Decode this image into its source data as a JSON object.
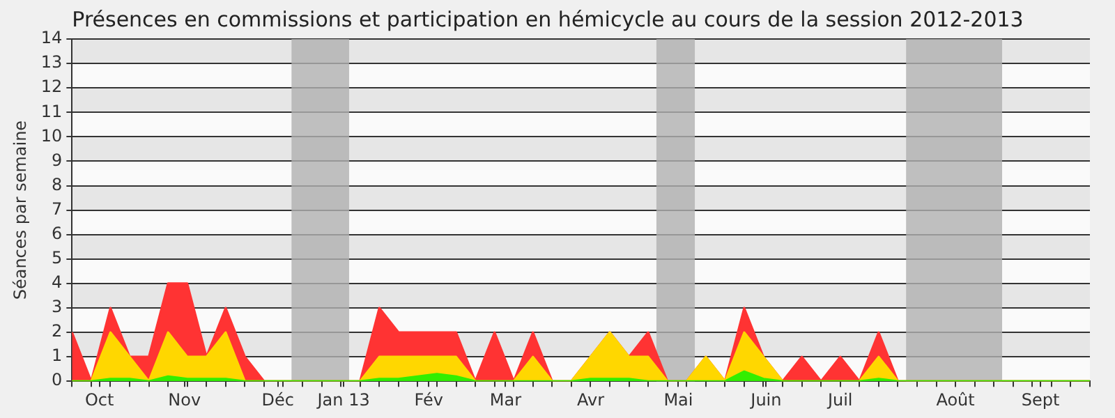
{
  "chart_data": {
    "type": "area",
    "title": "Présences en commissions et participation en hémicycle au cours de la session 2012-2013",
    "ylabel": "Séances par semaine",
    "stacked": true,
    "x": [
      "2012-09-24",
      "2012-10-01",
      "2012-10-08",
      "2012-10-15",
      "2012-10-22",
      "2012-10-29",
      "2012-11-05",
      "2012-11-12",
      "2012-11-19",
      "2012-11-26",
      "2012-12-03",
      "2012-12-10",
      "2012-12-17",
      "2012-12-24",
      "2012-12-31",
      "2013-01-07",
      "2013-01-14",
      "2013-01-21",
      "2013-01-28",
      "2013-02-04",
      "2013-02-11",
      "2013-02-18",
      "2013-02-25",
      "2013-03-04",
      "2013-03-11",
      "2013-03-18",
      "2013-03-25",
      "2013-04-01",
      "2013-04-08",
      "2013-04-15",
      "2013-04-22",
      "2013-04-29",
      "2013-05-06",
      "2013-05-13",
      "2013-05-20",
      "2013-05-27",
      "2013-06-03",
      "2013-06-10",
      "2013-06-17",
      "2013-06-24",
      "2013-07-01",
      "2013-07-08",
      "2013-07-15",
      "2013-07-22",
      "2013-07-29",
      "2013-08-05",
      "2013-08-12",
      "2013-08-19",
      "2013-08-26",
      "2013-09-02",
      "2013-09-09",
      "2013-09-16",
      "2013-09-23",
      "2013-09-30"
    ],
    "series": [
      {
        "color": "#33ee00",
        "values": [
          0,
          0,
          0.1,
          0.1,
          0,
          0.2,
          0.1,
          0.1,
          0.1,
          0,
          0,
          0,
          0,
          0,
          0,
          0,
          0.1,
          0.1,
          0.2,
          0.3,
          0.2,
          0,
          0,
          0,
          0,
          0,
          0,
          0.1,
          0.1,
          0.1,
          0,
          0,
          0,
          0,
          0,
          0.4,
          0.1,
          0,
          0,
          0,
          0,
          0,
          0.1,
          0,
          0,
          0,
          0,
          0,
          0,
          0,
          0,
          0,
          0,
          0
        ]
      },
      {
        "color": "#ffd700",
        "values": [
          0,
          0,
          1.9,
          0.9,
          0,
          1.8,
          0.9,
          0.9,
          1.9,
          0,
          0,
          0,
          0,
          0,
          0,
          0,
          0.9,
          0.9,
          0.8,
          0.7,
          0.8,
          0,
          0,
          0,
          1,
          0,
          0,
          0.9,
          1.9,
          0.9,
          1,
          0,
          0,
          1,
          0,
          1.6,
          0.9,
          0,
          0,
          0,
          0,
          0,
          0.9,
          0,
          0,
          0,
          0,
          0,
          0,
          0,
          0,
          0,
          0,
          0
        ]
      },
      {
        "color": "#ff3333",
        "values": [
          2,
          0,
          1,
          0,
          1,
          2,
          3,
          0,
          1,
          1,
          0,
          0,
          0,
          0,
          0,
          0,
          2,
          1,
          1,
          1,
          1,
          0,
          2,
          0,
          1,
          0,
          0,
          0,
          0,
          0,
          1,
          0,
          0,
          0,
          0,
          1,
          0,
          0,
          1,
          0,
          1,
          0,
          1,
          0,
          0,
          0,
          0,
          0,
          0,
          0,
          0,
          0,
          0,
          0
        ]
      }
    ],
    "xlim": [
      "2012-09-24",
      "2013-09-30"
    ],
    "xticks": [
      {
        "value": "2012-09-24",
        "label": null
      },
      {
        "value": "2012-10-01",
        "label": null
      },
      {
        "value": "2012-10-08",
        "label": null
      },
      {
        "value": "2012-10-15",
        "label": null
      },
      {
        "value": "2012-10-22",
        "label": null
      },
      {
        "value": "2012-10-29",
        "label": null
      },
      {
        "value": "2012-11-05",
        "label": null
      },
      {
        "value": "2012-11-12",
        "label": null
      },
      {
        "value": "2012-11-19",
        "label": null
      },
      {
        "value": "2012-11-26",
        "label": null
      },
      {
        "value": "2012-12-03",
        "label": null
      },
      {
        "value": "2012-12-10",
        "label": null
      },
      {
        "value": "2012-12-17",
        "label": null
      },
      {
        "value": "2012-12-24",
        "label": null
      },
      {
        "value": "2012-12-31",
        "label": null
      },
      {
        "value": "2013-01-07",
        "label": null
      },
      {
        "value": "2013-01-14",
        "label": null
      },
      {
        "value": "2013-01-21",
        "label": null
      },
      {
        "value": "2013-01-28",
        "label": null
      },
      {
        "value": "2013-02-04",
        "label": null
      },
      {
        "value": "2013-02-11",
        "label": null
      },
      {
        "value": "2013-02-18",
        "label": null
      },
      {
        "value": "2013-02-25",
        "label": null
      },
      {
        "value": "2013-03-04",
        "label": null
      },
      {
        "value": "2013-03-11",
        "label": null
      },
      {
        "value": "2013-03-18",
        "label": null
      },
      {
        "value": "2013-03-25",
        "label": null
      },
      {
        "value": "2013-04-01",
        "label": null
      },
      {
        "value": "2013-04-08",
        "label": null
      },
      {
        "value": "2013-04-15",
        "label": null
      },
      {
        "value": "2013-04-22",
        "label": null
      },
      {
        "value": "2013-04-29",
        "label": null
      },
      {
        "value": "2013-05-06",
        "label": null
      },
      {
        "value": "2013-05-13",
        "label": null
      },
      {
        "value": "2013-05-20",
        "label": null
      },
      {
        "value": "2013-05-27",
        "label": null
      },
      {
        "value": "2013-06-03",
        "label": null
      },
      {
        "value": "2013-06-10",
        "label": null
      },
      {
        "value": "2013-06-17",
        "label": null
      },
      {
        "value": "2013-06-24",
        "label": null
      },
      {
        "value": "2013-07-01",
        "label": null
      },
      {
        "value": "2013-07-08",
        "label": null
      },
      {
        "value": "2013-07-15",
        "label": null
      },
      {
        "value": "2013-07-22",
        "label": null
      },
      {
        "value": "2013-07-29",
        "label": null
      },
      {
        "value": "2013-08-05",
        "label": null
      },
      {
        "value": "2013-08-12",
        "label": null
      },
      {
        "value": "2013-08-19",
        "label": null
      },
      {
        "value": "2013-08-26",
        "label": null
      },
      {
        "value": "2013-09-02",
        "label": null
      },
      {
        "value": "2013-09-09",
        "label": null
      },
      {
        "value": "2013-09-16",
        "label": null
      },
      {
        "value": "2013-09-23",
        "label": null
      },
      {
        "value": "2013-09-30",
        "label": null
      },
      {
        "value": "2012-10-04",
        "label": "Oct"
      },
      {
        "value": "2012-11-04",
        "label": "Nov"
      },
      {
        "value": "2012-12-08",
        "label": "Déc"
      },
      {
        "value": "2013-01-01",
        "label": "Jan 13"
      },
      {
        "value": "2013-02-01",
        "label": "Fév"
      },
      {
        "value": "2013-03-01",
        "label": "Mar"
      },
      {
        "value": "2013-04-01",
        "label": "Avr"
      },
      {
        "value": "2013-05-03",
        "label": "Mai"
      },
      {
        "value": "2013-06-04",
        "label": "Juin"
      },
      {
        "value": "2013-07-01",
        "label": "Juil"
      },
      {
        "value": "2013-08-12",
        "label": "Août"
      },
      {
        "value": "2013-09-12",
        "label": "Sept"
      }
    ],
    "ylim": [
      0,
      14
    ],
    "yticks": [
      0,
      1,
      2,
      3,
      4,
      5,
      6,
      7,
      8,
      9,
      10,
      11,
      12,
      13,
      14
    ],
    "grid": "y",
    "legend": false,
    "marker": "none",
    "bands": [
      {
        "axis": "x",
        "from": "2012-12-13",
        "to": "2013-01-03",
        "color": "#b0b0b0"
      },
      {
        "axis": "x",
        "from": "2013-04-25",
        "to": "2013-05-09",
        "color": "#b0b0b0"
      },
      {
        "axis": "x",
        "from": "2013-07-25",
        "to": "2013-08-29",
        "color": "#b0b0b0"
      }
    ]
  }
}
